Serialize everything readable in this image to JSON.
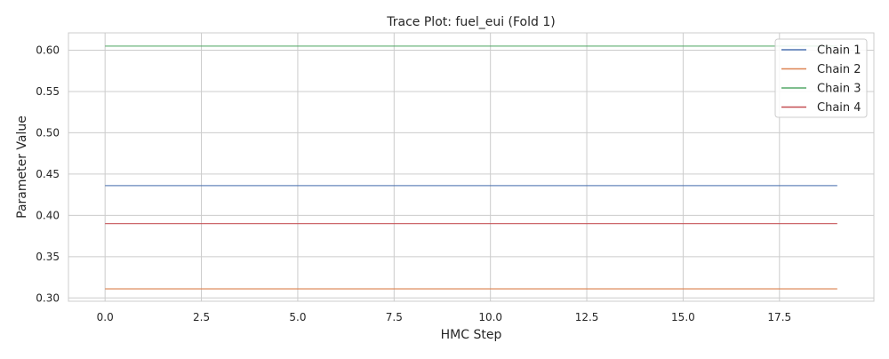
{
  "chart_data": {
    "type": "line",
    "title": "Trace Plot: fuel_eui (Fold 1)",
    "xlabel": "HMC Step",
    "ylabel": "Parameter Value",
    "xlim": [
      -0.95,
      19.95
    ],
    "ylim": [
      0.296,
      0.621
    ],
    "xticks": [
      0.0,
      2.5,
      5.0,
      7.5,
      10.0,
      12.5,
      15.0,
      17.5
    ],
    "xtick_labels": [
      "0.0",
      "2.5",
      "5.0",
      "7.5",
      "10.0",
      "12.5",
      "15.0",
      "17.5"
    ],
    "yticks": [
      0.3,
      0.35,
      0.4,
      0.45,
      0.5,
      0.55,
      0.6
    ],
    "ytick_labels": [
      "0.30",
      "0.35",
      "0.40",
      "0.45",
      "0.50",
      "0.55",
      "0.60"
    ],
    "grid": true,
    "legend": "top-right",
    "x": [
      0,
      1,
      2,
      3,
      4,
      5,
      6,
      7,
      8,
      9,
      10,
      11,
      12,
      13,
      14,
      15,
      16,
      17,
      18,
      19
    ],
    "series": [
      {
        "name": "Chain 1",
        "color": "#4c72b0",
        "values": [
          0.436,
          0.436,
          0.436,
          0.436,
          0.436,
          0.436,
          0.436,
          0.436,
          0.436,
          0.436,
          0.436,
          0.436,
          0.436,
          0.436,
          0.436,
          0.436,
          0.436,
          0.436,
          0.436,
          0.436
        ]
      },
      {
        "name": "Chain 2",
        "color": "#dd8452",
        "values": [
          0.311,
          0.311,
          0.311,
          0.311,
          0.311,
          0.311,
          0.311,
          0.311,
          0.311,
          0.311,
          0.311,
          0.311,
          0.311,
          0.311,
          0.311,
          0.311,
          0.311,
          0.311,
          0.311,
          0.311
        ]
      },
      {
        "name": "Chain 3",
        "color": "#55a868",
        "values": [
          0.605,
          0.605,
          0.605,
          0.605,
          0.605,
          0.605,
          0.605,
          0.605,
          0.605,
          0.605,
          0.605,
          0.605,
          0.605,
          0.605,
          0.605,
          0.605,
          0.605,
          0.605,
          0.605,
          0.605
        ]
      },
      {
        "name": "Chain 4",
        "color": "#c44e52",
        "values": [
          0.39,
          0.39,
          0.39,
          0.39,
          0.39,
          0.39,
          0.39,
          0.39,
          0.39,
          0.39,
          0.39,
          0.39,
          0.39,
          0.39,
          0.39,
          0.39,
          0.39,
          0.39,
          0.39,
          0.39
        ]
      }
    ]
  }
}
